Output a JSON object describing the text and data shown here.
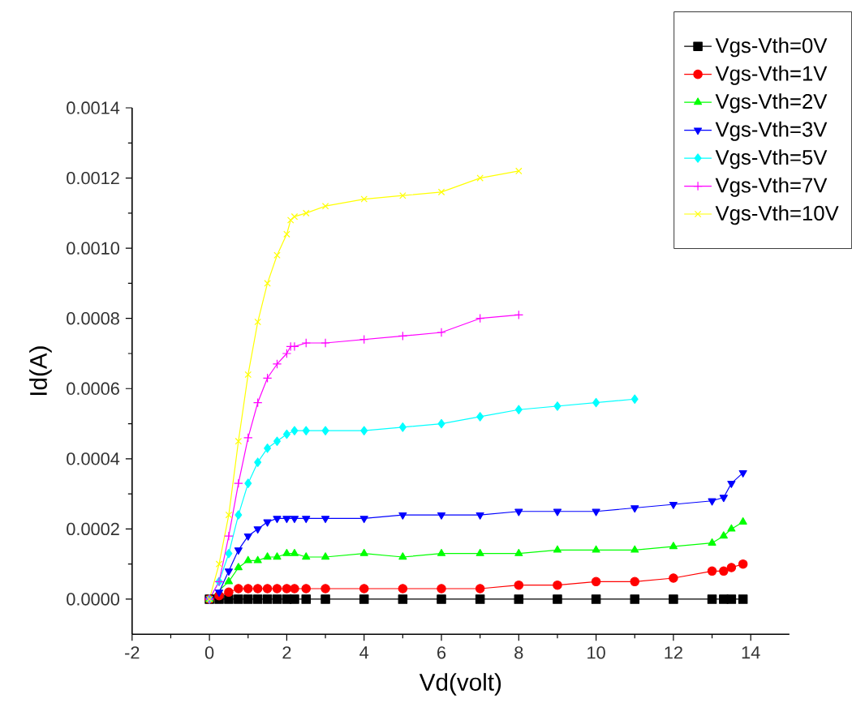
{
  "chart_data": {
    "type": "line",
    "xlabel": "Vd(volt)",
    "ylabel": "Id(A)",
    "xlim": [
      -2,
      15
    ],
    "ylim": [
      -0.0001,
      0.0014
    ],
    "xticks": [
      -2,
      0,
      2,
      4,
      6,
      8,
      10,
      12,
      14
    ],
    "yticks": [
      {
        "value": 0,
        "label": "0.0000"
      },
      {
        "value": 0.0002,
        "label": "0.0002"
      },
      {
        "value": 0.0004,
        "label": "0.0004"
      },
      {
        "value": 0.0006,
        "label": "0.0006"
      },
      {
        "value": 0.0008,
        "label": "0.0008"
      },
      {
        "value": 0.001,
        "label": "0.0010"
      },
      {
        "value": 0.0012,
        "label": "0.0012"
      },
      {
        "value": 0.0014,
        "label": "0.0014"
      }
    ],
    "grid": false,
    "legend": "top right",
    "line_style": "solid",
    "series": [
      {
        "name": "Vgs-Vth=0V",
        "color": "#000000",
        "marker": "square",
        "x": [
          0,
          0.25,
          0.5,
          0.75,
          1,
          1.25,
          1.5,
          1.75,
          2,
          2.2,
          2.5,
          3,
          4,
          5,
          6,
          7,
          8,
          9,
          10,
          11,
          12,
          13,
          13.3,
          13.5,
          13.8
        ],
        "values": [
          0,
          0,
          0,
          0,
          0,
          0,
          0,
          0,
          0,
          0,
          0,
          0,
          0,
          0,
          0,
          0,
          0,
          0,
          0,
          0,
          0,
          0,
          0,
          0,
          0
        ]
      },
      {
        "name": "Vgs-Vth=1V",
        "color": "#ff0000",
        "marker": "circle",
        "x": [
          0,
          0.25,
          0.5,
          0.75,
          1,
          1.25,
          1.5,
          1.75,
          2,
          2.2,
          2.5,
          3,
          4,
          5,
          6,
          7,
          8,
          9,
          10,
          11,
          12,
          13,
          13.3,
          13.5,
          13.8
        ],
        "values": [
          0,
          1e-05,
          2e-05,
          3e-05,
          3e-05,
          3e-05,
          3e-05,
          3e-05,
          3e-05,
          3e-05,
          3e-05,
          3e-05,
          3e-05,
          3e-05,
          3e-05,
          3e-05,
          4e-05,
          4e-05,
          5e-05,
          5e-05,
          6e-05,
          8e-05,
          8e-05,
          9e-05,
          0.0001
        ]
      },
      {
        "name": "Vgs-Vth=2V",
        "color": "#00ff00",
        "marker": "triangle",
        "x": [
          0,
          0.25,
          0.5,
          0.75,
          1,
          1.25,
          1.5,
          1.75,
          2,
          2.2,
          2.5,
          3,
          4,
          5,
          6,
          7,
          8,
          9,
          10,
          11,
          12,
          13,
          13.3,
          13.5,
          13.8
        ],
        "values": [
          0,
          null,
          5e-05,
          9e-05,
          0.00011,
          0.00011,
          0.00012,
          0.00012,
          0.00013,
          0.00013,
          0.00012,
          0.00012,
          0.00013,
          0.00012,
          0.00013,
          0.00013,
          0.00013,
          0.00014,
          0.00014,
          0.00014,
          0.00015,
          0.00016,
          0.00018,
          0.0002,
          0.00022
        ]
      },
      {
        "name": "Vgs-Vth=3V",
        "color": "#0000ff",
        "marker": "triangle-down",
        "x": [
          0,
          0.25,
          0.5,
          0.75,
          1,
          1.25,
          1.5,
          1.75,
          2,
          2.2,
          2.5,
          3,
          4,
          5,
          6,
          7,
          8,
          9,
          10,
          11,
          12,
          13,
          13.3,
          13.5,
          13.8
        ],
        "values": [
          0,
          2e-05,
          8e-05,
          0.00014,
          0.00018,
          0.0002,
          0.00022,
          0.00023,
          0.00023,
          0.00023,
          0.00023,
          0.00023,
          0.00023,
          0.00024,
          0.00024,
          0.00024,
          0.00025,
          0.00025,
          0.00025,
          0.00026,
          0.00027,
          0.00028,
          0.00029,
          0.00033,
          0.00036
        ]
      },
      {
        "name": "Vgs-Vth=5V",
        "color": "#00ffff",
        "marker": "diamond",
        "x": [
          0,
          0.25,
          0.5,
          0.75,
          1,
          1.25,
          1.5,
          1.75,
          2,
          2.2,
          2.5,
          3,
          4,
          5,
          6,
          7,
          8,
          9,
          10,
          11
        ],
        "values": [
          0,
          5e-05,
          0.00013,
          0.00024,
          0.00033,
          0.00039,
          0.00043,
          0.00045,
          0.00047,
          0.00048,
          0.00048,
          0.00048,
          0.00048,
          0.00049,
          0.0005,
          0.00052,
          0.00054,
          0.00055,
          0.00056,
          0.00057
        ]
      },
      {
        "name": "Vgs-Vth=7V",
        "color": "#ff00ff",
        "marker": "plus",
        "x": [
          0,
          0.25,
          0.5,
          0.75,
          1,
          1.25,
          1.5,
          1.75,
          2,
          2.1,
          2.2,
          2.5,
          3,
          4,
          5,
          6,
          7,
          8
        ],
        "values": [
          0,
          5e-05,
          0.00018,
          0.00033,
          0.00046,
          0.00056,
          0.00063,
          0.00067,
          0.0007,
          0.00072,
          0.00072,
          0.00073,
          0.00073,
          0.00074,
          0.00075,
          0.00076,
          0.0008,
          0.00081
        ]
      },
      {
        "name": "Vgs-Vth=10V",
        "color": "#ffff00",
        "marker": "cross",
        "x": [
          0,
          0.25,
          0.5,
          0.75,
          1,
          1.25,
          1.5,
          1.75,
          2,
          2.1,
          2.2,
          2.5,
          3,
          4,
          5,
          6,
          7,
          8
        ],
        "values": [
          0,
          0.0001,
          0.00024,
          0.00045,
          0.00064,
          0.00079,
          0.0009,
          0.00098,
          0.00104,
          0.00108,
          0.00109,
          0.0011,
          0.00112,
          0.00114,
          0.00115,
          0.00116,
          0.0012,
          0.00122
        ]
      }
    ]
  }
}
